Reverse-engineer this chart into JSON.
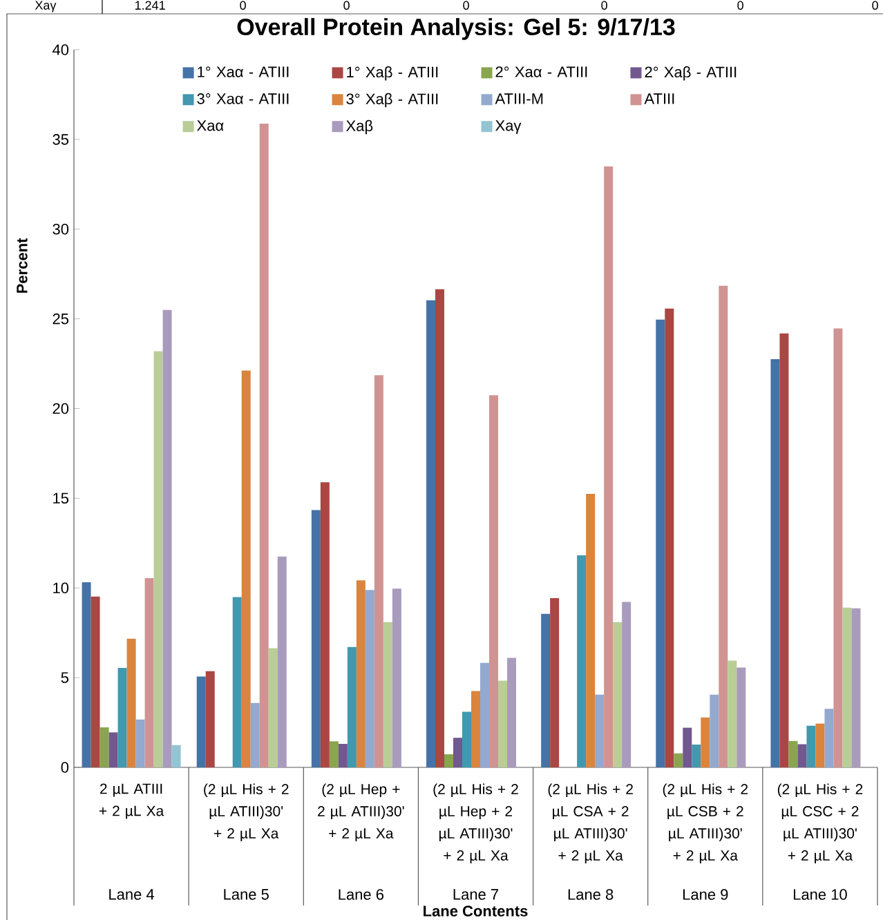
{
  "chart_data": {
    "type": "bar",
    "title": "Overall Protein Analysis: Gel 5: 9/17/13",
    "xlabel": "Lane Contents",
    "ylabel": "Percent",
    "categories": [
      "2 µL ATIII + 2 µL Xa",
      "(2 µL His + 2 µL ATIII)30' + 2 µL Xa",
      "(2 µL Hep + 2 µL ATIII)30' + 2 µL Xa",
      "(2 µL His + 2 µL Hep + 2 µL ATIII)30' + 2 µL Xa",
      "(2 µL His + 2 µL CSA + 2 µL ATIII)30' + 2 µL Xa",
      "(2 µL His + 2 µL CSB + 2 µL ATIII)30' + 2 µL Xa",
      "(2 µL His + 2 µL CSC + 2 µL ATIII)30' + 2 µL Xa"
    ],
    "series": [
      {
        "name": "1° Xaα - ATIII",
        "color": "#4572a7",
        "values": [
          10.32,
          5.06,
          14.34,
          26.03,
          8.56,
          24.96,
          22.75
        ]
      },
      {
        "name": "1° Xaβ - ATIII",
        "color": "#aa4643",
        "values": [
          9.52,
          5.36,
          15.89,
          26.65,
          9.43,
          25.57,
          24.19
        ]
      },
      {
        "name": "2° Xaα - ATIII",
        "color": "#89a54e",
        "values": [
          2.23,
          0,
          1.45,
          0.73,
          0,
          0.78,
          1.47
        ]
      },
      {
        "name": "2° Xaβ - ATIII",
        "color": "#71588f",
        "values": [
          1.95,
          0,
          1.31,
          1.65,
          0,
          2.21,
          1.29
        ]
      },
      {
        "name": "3° Xaα - ATIII",
        "color": "#4198af",
        "values": [
          5.54,
          9.49,
          6.71,
          3.1,
          11.82,
          1.27,
          2.32
        ]
      },
      {
        "name": "3° Xaβ - ATIII",
        "color": "#db843d",
        "values": [
          7.17,
          22.12,
          10.42,
          4.25,
          15.25,
          2.78,
          2.44
        ]
      },
      {
        "name": "ATIII-M",
        "color": "#93a9cf",
        "values": [
          2.67,
          3.59,
          9.88,
          5.82,
          4.05,
          4.05,
          3.26
        ]
      },
      {
        "name": "ATIII",
        "color": "#d19392",
        "values": [
          10.55,
          35.88,
          21.86,
          20.74,
          33.49,
          26.84,
          24.47
        ]
      },
      {
        "name": "Xaα",
        "color": "#b9cd96",
        "values": [
          23.2,
          6.64,
          8.09,
          4.83,
          8.09,
          5.95,
          8.9
        ]
      },
      {
        "name": "Xaβ",
        "color": "#a99bbd",
        "values": [
          25.5,
          11.75,
          9.96,
          6.1,
          9.22,
          5.56,
          8.86
        ]
      },
      {
        "name": "Xaγ",
        "color": "#92c4d3",
        "values": [
          1.24,
          0,
          0,
          0,
          0,
          0,
          0
        ]
      }
    ],
    "ylim": [
      0,
      40
    ],
    "yticks": [
      0,
      5,
      10,
      15,
      20,
      25,
      30,
      35,
      40
    ],
    "legend": "top",
    "annotations": [
      "Lane 4",
      "Lane 5",
      "Lane 6",
      "Lane 7",
      "Lane 8",
      "Lane 9",
      "Lane 10",
      "Xaγ",
      "1.241",
      "0",
      "0",
      "0",
      "0",
      "0",
      "0"
    ]
  }
}
